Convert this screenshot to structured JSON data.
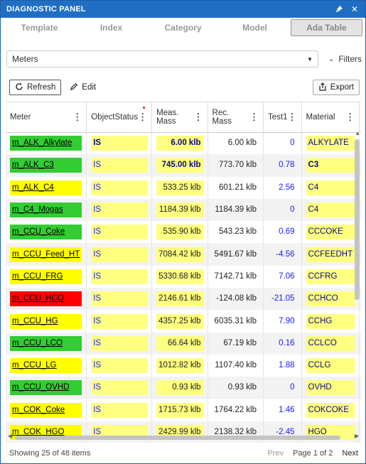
{
  "window": {
    "title": "DIAGNOSTIC PANEL"
  },
  "tabs": [
    "Template",
    "Index",
    "Category",
    "Model",
    "Ada Table"
  ],
  "active_tab": 4,
  "selector": {
    "value": "Meters",
    "filters_label": "Filters"
  },
  "toolbar": {
    "refresh_label": "Refresh",
    "edit_label": "Edit",
    "export_label": "Export"
  },
  "columns": [
    "Meter",
    "ObjectStatus",
    "Meas. Mass",
    "Rec. Mass",
    "Test1",
    "Material",
    ""
  ],
  "rows": [
    {
      "meter": "m_ALK_Alkylate",
      "meter_color": "green",
      "status": "IS",
      "meas": "6.00 klb",
      "rec": "6.00 klb",
      "test1": "0",
      "material": "ALKYLATE"
    },
    {
      "meter": "m_ALK_C3",
      "meter_color": "green",
      "status": "IS",
      "meas": "745.00 klb",
      "rec": "773.70 klb",
      "test1": "0.78",
      "material": "C3"
    },
    {
      "meter": "m_ALK_C4",
      "meter_color": "yellow",
      "status": "IS",
      "meas": "533.25 klb",
      "rec": "601.21 klb",
      "test1": "2.56",
      "material": "C4"
    },
    {
      "meter": "m_C4_Mogas",
      "meter_color": "green",
      "status": "IS",
      "meas": "1184.39 klb",
      "rec": "1184.39 klb",
      "test1": "0",
      "material": "C4"
    },
    {
      "meter": "m_CCU_Coke",
      "meter_color": "green",
      "status": "IS",
      "meas": "535.90 klb",
      "rec": "543.23 klb",
      "test1": "0.69",
      "material": "CCCOKE"
    },
    {
      "meter": "m_CCU_Feed_HT",
      "meter_color": "yellow",
      "status": "IS",
      "meas": "7084.42 klb",
      "rec": "5491.67 klb",
      "test1": "-4.56",
      "material": "CCFEEDHT"
    },
    {
      "meter": "m_CCU_FRG",
      "meter_color": "yellow",
      "status": "IS",
      "meas": "5330.68 klb",
      "rec": "7142.71 klb",
      "test1": "7.06",
      "material": "CCFRG"
    },
    {
      "meter": "m_CCU_HCO",
      "meter_color": "red",
      "status": "IS",
      "meas": "2146.61 klb",
      "rec": "-124.08 klb",
      "test1": "-21.05",
      "material": "CCHCO"
    },
    {
      "meter": "m_CCU_HG",
      "meter_color": "yellow",
      "status": "IS",
      "meas": "4357.25 klb",
      "rec": "6035.31 klb",
      "test1": "7.90",
      "material": "CCHG"
    },
    {
      "meter": "m_CCU_LCO",
      "meter_color": "green",
      "status": "IS",
      "meas": "66.64 klb",
      "rec": "67.19 klb",
      "test1": "0.16",
      "material": "CCLCO"
    },
    {
      "meter": "m_CCU_LG",
      "meter_color": "yellow",
      "status": "IS",
      "meas": "1012.82 klb",
      "rec": "1107.40 klb",
      "test1": "1.88",
      "material": "CCLG"
    },
    {
      "meter": "m_CCU_OVHD",
      "meter_color": "green",
      "status": "IS",
      "meas": "0.93 klb",
      "rec": "0.93 klb",
      "test1": "0",
      "material": "OVHD"
    },
    {
      "meter": "m_COK_Coke",
      "meter_color": "yellow",
      "status": "IS",
      "meas": "1715.73 klb",
      "rec": "1764.22 klb",
      "test1": "1.46",
      "material": "COKCOKE"
    },
    {
      "meter": "m_COK_HGO",
      "meter_color": "yellow",
      "status": "IS",
      "meas": "2429.99 klb",
      "rec": "2138.32 klb",
      "test1": "-2.45",
      "material": "HGO"
    }
  ],
  "footer": {
    "showing": "Showing 25 of 48 items",
    "prev": "Prev",
    "page": "Page 1 of 2",
    "next": "Next"
  },
  "colors": {
    "titlebar": "#1f6ec4",
    "green": "#33cc33",
    "yellow": "#ffff00",
    "red": "#ff0000",
    "cell_highlight": "#ffff80",
    "number_blue": "#1a1aff"
  }
}
